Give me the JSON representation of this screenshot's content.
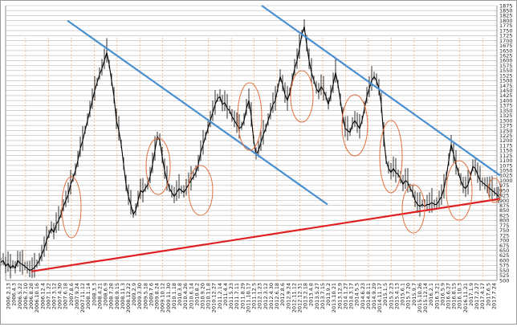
{
  "chart_data": {
    "type": "line",
    "title": "",
    "xlabel": "",
    "ylabel": "",
    "ylim": [
      500,
      1875
    ],
    "y_ticks": [
      500,
      525,
      550,
      575,
      600,
      625,
      650,
      675,
      700,
      725,
      750,
      775,
      800,
      825,
      850,
      875,
      900,
      925,
      950,
      975,
      1000,
      1025,
      1050,
      1075,
      1100,
      1125,
      1150,
      1175,
      1200,
      1225,
      1250,
      1275,
      1300,
      1325,
      1350,
      1375,
      1400,
      1425,
      1450,
      1475,
      1500,
      1525,
      1550,
      1575,
      1600,
      1625,
      1650,
      1675,
      1700,
      1725,
      1750,
      1775,
      1800,
      1825,
      1850,
      1875
    ],
    "x_tick_labels": [
      "2006.2.13",
      "2006.4.3",
      "2006.5.22",
      "2006.7.10",
      "2006.8.28",
      "2006.10.16",
      "2006.12.4",
      "2007.1.22",
      "2007.3.12",
      "2007.4.30",
      "2007.6.18",
      "2007.8.6",
      "2007.9.24",
      "2007.11.12",
      "2008.1.14",
      "2008.3.3",
      "2008.4.21",
      "2008.6.9",
      "2008.7.28",
      "2008.9.15",
      "2008.11.3",
      "2008.12.22",
      "2009.2.9",
      "2009.3.30",
      "2009.5.18",
      "2009.7.6",
      "2009.8.24",
      "2009.10.12",
      "2009.11.30",
      "2010.1.18",
      "2010.3.8",
      "2010.4.26",
      "2010.6.14",
      "2010.8.2",
      "2010.9.20",
      "2010.11.8",
      "2010.12.27",
      "2011.2.14",
      "2011.4.4",
      "2011.5.23",
      "2011.7.11",
      "2011.8.29",
      "2011.10.17",
      "2011.12.5",
      "2012.1.23",
      "2012.3.12",
      "2012.4.30",
      "2012.6.18",
      "2012.8.6",
      "2012.9.24",
      "2012.11.12",
      "2012.12.31",
      "2013.2.18",
      "2013.4.8",
      "2013.5.27",
      "2013.7.15",
      "2013.9.2",
      "2013.10.21",
      "2013.12.9",
      "2014.1.27",
      "2014.3.17",
      "2014.5.5",
      "2014.6.23",
      "2014.8.11",
      "2014.9.29",
      "2014.11.17",
      "2015.1.5",
      "2015.2.23",
      "2015.4.13",
      "2015.6.1",
      "2015.7.20",
      "2015.9.7",
      "2015.10.26",
      "2015.12.14",
      "2016.2.1",
      "2016.3.21",
      "2016.5.9",
      "2016.6.27",
      "2016.8.15",
      "2016.10.3",
      "2016.11.21",
      "2017.1.9",
      "2017.2.27",
      "2017.4.17",
      "2017.6.5",
      "2017.7.24"
    ],
    "series": [
      {
        "type": "candlestick-approx",
        "color": "#000000",
        "points": [
          [
            0,
            590
          ],
          [
            3,
            600
          ],
          [
            6,
            570
          ],
          [
            9,
            585
          ],
          [
            12,
            560
          ],
          [
            15,
            575
          ],
          [
            18,
            560
          ],
          [
            21,
            600
          ],
          [
            24,
            585
          ],
          [
            27,
            580
          ],
          [
            30,
            570
          ],
          [
            33,
            560
          ],
          [
            36,
            550
          ],
          [
            39,
            555
          ],
          [
            42,
            565
          ],
          [
            45,
            580
          ],
          [
            48,
            600
          ],
          [
            51,
            630
          ],
          [
            54,
            660
          ],
          [
            57,
            700
          ],
          [
            60,
            730
          ],
          [
            63,
            760
          ],
          [
            66,
            740
          ],
          [
            69,
            780
          ],
          [
            72,
            800
          ],
          [
            75,
            830
          ],
          [
            78,
            870
          ],
          [
            81,
            900
          ],
          [
            84,
            930
          ],
          [
            87,
            980
          ],
          [
            90,
            1010
          ],
          [
            93,
            1050
          ],
          [
            96,
            1100
          ],
          [
            99,
            1160
          ],
          [
            102,
            1200
          ],
          [
            105,
            1250
          ],
          [
            108,
            1300
          ],
          [
            111,
            1350
          ],
          [
            114,
            1400
          ],
          [
            117,
            1450
          ],
          [
            120,
            1490
          ],
          [
            123,
            1530
          ],
          [
            126,
            1560
          ],
          [
            129,
            1600
          ],
          [
            132,
            1640
          ],
          [
            135,
            1580
          ],
          [
            138,
            1500
          ],
          [
            141,
            1420
          ],
          [
            144,
            1300
          ],
          [
            147,
            1250
          ],
          [
            150,
            1180
          ],
          [
            153,
            1080
          ],
          [
            156,
            980
          ],
          [
            159,
            920
          ],
          [
            162,
            880
          ],
          [
            165,
            830
          ],
          [
            168,
            850
          ],
          [
            171,
            900
          ],
          [
            174,
            950
          ],
          [
            177,
            940
          ],
          [
            180,
            960
          ],
          [
            183,
            980
          ],
          [
            186,
            1020
          ],
          [
            189,
            1080
          ],
          [
            192,
            1150
          ],
          [
            195,
            1220
          ],
          [
            198,
            1200
          ],
          [
            201,
            1120
          ],
          [
            204,
            1050
          ],
          [
            207,
            1000
          ],
          [
            210,
            960
          ],
          [
            213,
            940
          ],
          [
            216,
            920
          ],
          [
            219,
            940
          ],
          [
            222,
            960
          ],
          [
            225,
            950
          ],
          [
            228,
            940
          ],
          [
            231,
            960
          ],
          [
            234,
            980
          ],
          [
            237,
            1000
          ],
          [
            240,
            1020
          ],
          [
            243,
            1040
          ],
          [
            246,
            1080
          ],
          [
            249,
            1140
          ],
          [
            252,
            1180
          ],
          [
            255,
            1220
          ],
          [
            258,
            1260
          ],
          [
            261,
            1300
          ],
          [
            264,
            1340
          ],
          [
            267,
            1380
          ],
          [
            270,
            1410
          ],
          [
            273,
            1420
          ],
          [
            276,
            1380
          ],
          [
            279,
            1390
          ],
          [
            282,
            1360
          ],
          [
            285,
            1350
          ],
          [
            288,
            1320
          ],
          [
            291,
            1300
          ],
          [
            294,
            1280
          ],
          [
            297,
            1260
          ],
          [
            300,
            1270
          ],
          [
            303,
            1300
          ],
          [
            306,
            1360
          ],
          [
            309,
            1400
          ],
          [
            312,
            1320
          ],
          [
            315,
            1200
          ],
          [
            318,
            1130
          ],
          [
            321,
            1150
          ],
          [
            324,
            1190
          ],
          [
            327,
            1230
          ],
          [
            330,
            1260
          ],
          [
            333,
            1300
          ],
          [
            336,
            1340
          ],
          [
            339,
            1380
          ],
          [
            342,
            1400
          ],
          [
            345,
            1460
          ],
          [
            348,
            1520
          ],
          [
            351,
            1480
          ],
          [
            354,
            1430
          ],
          [
            357,
            1400
          ],
          [
            360,
            1440
          ],
          [
            363,
            1500
          ],
          [
            366,
            1560
          ],
          [
            369,
            1600
          ],
          [
            372,
            1660
          ],
          [
            375,
            1730
          ],
          [
            378,
            1770
          ],
          [
            381,
            1680
          ],
          [
            384,
            1600
          ],
          [
            387,
            1540
          ],
          [
            390,
            1500
          ],
          [
            393,
            1460
          ],
          [
            396,
            1440
          ],
          [
            399,
            1470
          ],
          [
            402,
            1450
          ],
          [
            405,
            1420
          ],
          [
            408,
            1380
          ],
          [
            411,
            1430
          ],
          [
            414,
            1480
          ],
          [
            417,
            1540
          ],
          [
            420,
            1480
          ],
          [
            423,
            1400
          ],
          [
            426,
            1320
          ],
          [
            429,
            1260
          ],
          [
            432,
            1250
          ],
          [
            435,
            1240
          ],
          [
            438,
            1280
          ],
          [
            441,
            1300
          ],
          [
            444,
            1280
          ],
          [
            447,
            1260
          ],
          [
            450,
            1300
          ],
          [
            453,
            1360
          ],
          [
            456,
            1420
          ],
          [
            459,
            1460
          ],
          [
            462,
            1500
          ],
          [
            465,
            1520
          ],
          [
            468,
            1500
          ],
          [
            471,
            1460
          ],
          [
            474,
            1380
          ],
          [
            477,
            1220
          ],
          [
            480,
            1100
          ],
          [
            483,
            1060
          ],
          [
            486,
            1040
          ],
          [
            489,
            1060
          ],
          [
            492,
            1040
          ],
          [
            495,
            1030
          ],
          [
            498,
            1010
          ],
          [
            501,
            980
          ],
          [
            504,
            1000
          ],
          [
            507,
            990
          ],
          [
            510,
            960
          ],
          [
            513,
            940
          ],
          [
            516,
            900
          ],
          [
            519,
            880
          ],
          [
            522,
            870
          ],
          [
            525,
            880
          ],
          [
            528,
            870
          ],
          [
            531,
            880
          ],
          [
            534,
            880
          ],
          [
            537,
            890
          ],
          [
            540,
            880
          ],
          [
            543,
            880
          ],
          [
            546,
            900
          ],
          [
            549,
            920
          ],
          [
            552,
            960
          ],
          [
            555,
            1020
          ],
          [
            558,
            1100
          ],
          [
            561,
            1180
          ],
          [
            564,
            1130
          ],
          [
            567,
            1080
          ],
          [
            570,
            1040
          ],
          [
            573,
            1000
          ],
          [
            576,
            970
          ],
          [
            579,
            960
          ],
          [
            582,
            980
          ],
          [
            585,
            1020
          ],
          [
            588,
            1070
          ],
          [
            591,
            1060
          ],
          [
            594,
            1030
          ],
          [
            597,
            1000
          ],
          [
            600,
            990
          ],
          [
            603,
            980
          ],
          [
            606,
            970
          ],
          [
            609,
            960
          ],
          [
            612,
            950
          ],
          [
            615,
            940
          ],
          [
            618,
            930
          ],
          [
            620,
            920
          ]
        ]
      }
    ],
    "annotations": {
      "trendlines": [
        {
          "name": "upper-downtrend-left",
          "color": "#4a90d0",
          "from": [
            83,
            1800
          ],
          "to": [
            407,
            880
          ]
        },
        {
          "name": "upper-downtrend-right",
          "color": "#4a90d0",
          "from": [
            325,
            1875
          ],
          "to": [
            622,
            1025
          ]
        },
        {
          "name": "lower-uptrend",
          "color": "#e02020",
          "from": [
            38,
            545
          ],
          "to": [
            622,
            908
          ]
        }
      ],
      "circles": [
        {
          "cx": 88,
          "cy": 257,
          "rx": 12,
          "ry": 38
        },
        {
          "cx": 196,
          "cy": 206,
          "rx": 15,
          "ry": 35
        },
        {
          "cx": 249,
          "cy": 236,
          "rx": 15,
          "ry": 31
        },
        {
          "cx": 310,
          "cy": 144,
          "rx": 15,
          "ry": 42
        },
        {
          "cx": 375,
          "cy": 119,
          "rx": 14,
          "ry": 32
        },
        {
          "cx": 441,
          "cy": 155,
          "rx": 16,
          "ry": 38
        },
        {
          "cx": 486,
          "cy": 194,
          "rx": 14,
          "ry": 45
        },
        {
          "cx": 514,
          "cy": 259,
          "rx": 14,
          "ry": 30
        },
        {
          "cx": 571,
          "cy": 236,
          "rx": 16,
          "ry": 37
        },
        {
          "cx": 615,
          "cy": 236,
          "rx": 8,
          "ry": 15
        }
      ]
    },
    "grid": true,
    "legend": "none"
  }
}
